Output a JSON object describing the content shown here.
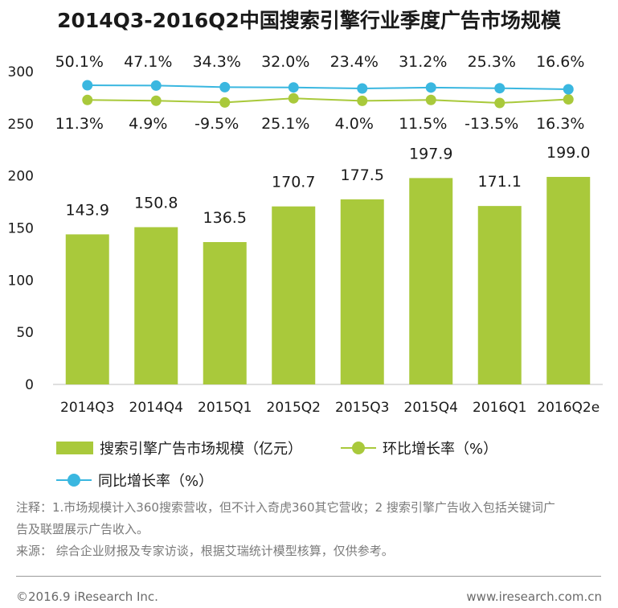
{
  "title": "2014Q3-2016Q2中国搜索引擎行业季度广告市场规模",
  "chart_data": {
    "type": "bar",
    "categories": [
      "2014Q3",
      "2014Q4",
      "2015Q1",
      "2015Q2",
      "2015Q3",
      "2015Q4",
      "2016Q1",
      "2016Q2e"
    ],
    "ylim": [
      0,
      300
    ],
    "yticks": [
      0,
      50,
      100,
      150,
      200,
      250,
      300
    ],
    "series": [
      {
        "name": "搜索引擎广告市场规模（亿元）",
        "kind": "bar",
        "color": "#a9c93b",
        "values": [
          143.9,
          150.8,
          136.5,
          170.7,
          177.5,
          197.9,
          171.1,
          199.0
        ],
        "labels": [
          "143.9",
          "150.8",
          "136.5",
          "170.7",
          "177.5",
          "197.9",
          "171.1",
          "199.0"
        ]
      },
      {
        "name": "环比增长率（%）",
        "kind": "line",
        "color": "#a9c93b",
        "values": [
          11.3,
          4.9,
          -9.5,
          25.1,
          4.0,
          11.5,
          -13.5,
          16.3
        ],
        "labels": [
          "11.3%",
          "4.9%",
          "-9.5%",
          "25.1%",
          "4.0%",
          "11.5%",
          "-13.5%",
          "16.3%"
        ]
      },
      {
        "name": "同比增长率（%）",
        "kind": "line",
        "color": "#3ab7e0",
        "values": [
          50.1,
          47.1,
          34.3,
          32.0,
          23.4,
          31.2,
          25.3,
          16.6
        ],
        "labels": [
          "50.1%",
          "47.1%",
          "34.3%",
          "32.0%",
          "23.4%",
          "31.2%",
          "25.3%",
          "16.6%"
        ]
      }
    ]
  },
  "notes": {
    "line1": "注释：1.市场规模计入360搜索营收，但不计入奇虎360其它营收；2 搜索引擎广告收入包括关键词广",
    "line2": "告及联盟展示广告收入。",
    "line3": "来源： 综合企业财报及专家访谈，根据艾瑞统计模型核算，仅供参考。"
  },
  "footer": {
    "left": "©2016.9  iResearch Inc.",
    "right": "www.iresearch.com.cn"
  }
}
